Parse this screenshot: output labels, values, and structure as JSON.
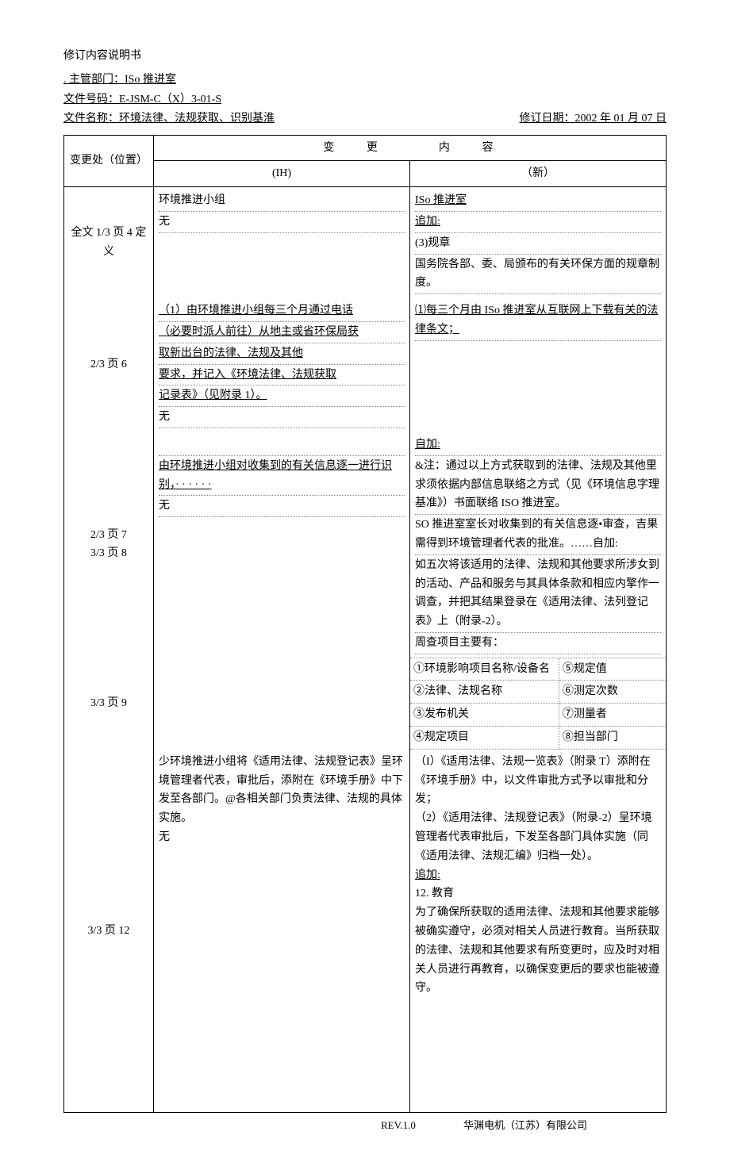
{
  "title": "修订内容说明书",
  "header": {
    "dept_label": ". 主管部门：",
    "dept_value": "ISo 推进室",
    "code_label": "文件号码：",
    "code_value": "E-JSM-C（X）3-01-S",
    "name_label": "文件名称：",
    "name_value": "环境法律、法规获取、识别基淮",
    "date_label": "修订日期：",
    "date_value": "2002 年 01 月 07 日"
  },
  "table": {
    "col_loc": "变更处（位置）",
    "col_change": "变　　更　　　　内　　容",
    "col_old": "(IH)",
    "col_new": "（新）",
    "rows": [
      {
        "loc": "全文 1/3 页 4 定义",
        "old_lines": [
          "环境推进小组",
          "无"
        ],
        "new_lines": [
          "ISo 推进室",
          "追加:",
          "(3)规章",
          "国务院各部、委、局颁布的有关环保方面的规章制度。"
        ]
      },
      {
        "loc": "2/3 页 6",
        "old_lines": [
          "（1）由环境推进小组每三个月通过电话",
          "（必要时派人前往）从地主或省环保局获",
          "取新出台的法律、法规及其他",
          "要求，并记入《环境法律、法规获取",
          "记录表》（见附录 1）。",
          "无"
        ],
        "new_lines": [
          "⑴每三个月由 ISo 推进室从互联网上下载有关的法律条文；"
        ]
      },
      {
        "loc": "2/3 页 7\n3/3 页 8",
        "old_lines": [
          "",
          "由环境推进小组对收集到的有关信息逐一进行识别，· · · · · ·",
          "无"
        ],
        "new_lines": [
          "自加:",
          "&注：通过以上方式获取到的法律、法规及其他里求须依据内部信息联络之方式（见《环境信息字理基准》）书面联络 ISO 推进室。",
          "SO 推进室室长对收集到的有关信息逐•审查，吉果需得到环境管理者代表的批准。……自加:",
          "如五次将该适用的法律、法规和其他要求所涉女到的活动、产品和服务与其具体条款和相应内擎作一调查，并把其结果登录在《适用法律、法列登记表》上（附录-2）。",
          "周查项目主要有："
        ]
      },
      {
        "loc": "3/3 页 9",
        "old_lines": [],
        "grid": [
          [
            "①环境影响项目名称/设备名",
            "⑤规定值"
          ],
          [
            "②法律、法规名称",
            "⑥测定次数"
          ],
          [
            "③发布机关",
            "⑦测量者"
          ],
          [
            "④规定项目",
            "⑧担当部门"
          ]
        ]
      },
      {
        "loc": "3/3 页 12",
        "old_lines": [
          "少环境推进小组将《适用法律、法规登记表》呈环境管理者代表，审批后，添附在《环境手册》中下发至各部门。@各相关部门负责法律、法规的具体实施。",
          "无"
        ],
        "new_lines": [
          "（I）《适用法律、法规一览表》（附录 T）添附在《环境手册》中，以文件审批方式予以审批和分发；",
          "（2）《适用法律、法规登记表》（附录-2）呈环境管理者代表审批后，下发至各部门具体实施（同《适用法律、法规汇编》归档一处）。",
          "追加:",
          "12. 教育",
          "为了确保所获取的适用法律、法规和其他要求能够被确实遵守，必须对相关人员进行教育。当所获取的法律、法规和其他要求有所变更时，应及时对相关人员进行再教育，以确保变更后的要求也能被遵守。"
        ]
      }
    ]
  },
  "footer": {
    "rev": "REV.1.0",
    "company": "华渊电机（江苏）有限公司"
  }
}
